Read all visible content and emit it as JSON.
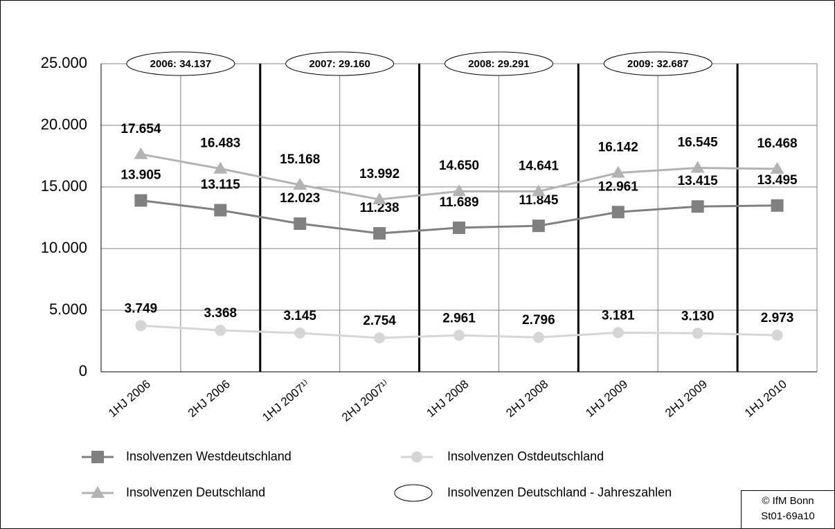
{
  "chart_data": {
    "type": "line",
    "categories": [
      "1HJ 2006",
      "2HJ 2006",
      "1HJ 2007¹⁾",
      "2HJ 2007¹⁾",
      "1HJ 2008",
      "2HJ 2008",
      "1HJ 2009",
      "2HJ 2009",
      "1HJ 2010"
    ],
    "series": [
      {
        "name": "Insolvenzen Westdeutschland",
        "color": "#808080",
        "marker": "square",
        "values": [
          13905,
          13115,
          12023,
          11238,
          11689,
          11845,
          12961,
          13415,
          13495
        ],
        "value_labels": [
          "13.905",
          "13.115",
          "12.023",
          "11.238",
          "11.689",
          "11.845",
          "12.961",
          "13.415",
          "13.495"
        ]
      },
      {
        "name": "Insolvenzen Ostdeutschland",
        "color": "#d6d6d6",
        "marker": "circle",
        "values": [
          3749,
          3368,
          3145,
          2754,
          2961,
          2796,
          3181,
          3130,
          2973
        ],
        "value_labels": [
          "3.749",
          "3.368",
          "3.145",
          "2.754",
          "2.961",
          "2.796",
          "3.181",
          "3.130",
          "2.973"
        ]
      },
      {
        "name": "Insolvenzen Deutschland",
        "color": "#b3b3b3",
        "marker": "triangle",
        "values": [
          17654,
          16483,
          15168,
          13992,
          14650,
          14641,
          16142,
          16545,
          16468
        ],
        "value_labels": [
          "17.654",
          "16.483",
          "15.168",
          "13.992",
          "14.650",
          "14.641",
          "16.142",
          "16.545",
          "16.468"
        ]
      }
    ],
    "ylim": [
      0,
      25000
    ],
    "yticks": [
      0,
      {
        "value": 5000,
        "label": "5.000"
      },
      {
        "value": 10000,
        "label": "10.000"
      },
      {
        "value": 15000,
        "label": "15.000"
      },
      {
        "value": 20000,
        "label": "20.000"
      },
      {
        "value": 25000,
        "label": "25.000"
      }
    ],
    "grid": true,
    "year_totals": [
      "2006: 34.137",
      "2007: 29.160",
      "2008: 29.291",
      "2009: 32.687"
    ],
    "year_totals_legend": "Insolvenzen Deutschland - Jahreszahlen",
    "source": [
      "© IfM Bonn",
      "St01-69a10"
    ]
  }
}
